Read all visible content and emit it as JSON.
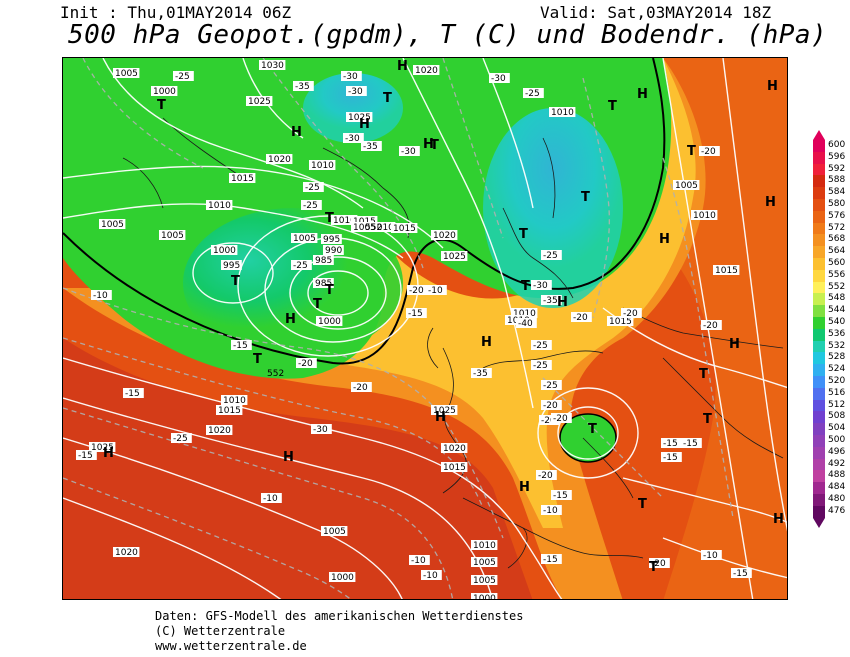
{
  "header": {
    "init": "Init : Thu,01MAY2014 06Z",
    "valid": "Valid: Sat,03MAY2014 18Z",
    "title": "500 hPa Geopot.(gpdm), T (C) und Bodendr. (hPa)"
  },
  "legend": {
    "values": [
      "600",
      "596",
      "592",
      "588",
      "584",
      "580",
      "576",
      "572",
      "568",
      "564",
      "560",
      "556",
      "552",
      "548",
      "544",
      "540",
      "536",
      "532",
      "528",
      "524",
      "520",
      "516",
      "512",
      "508",
      "504",
      "500",
      "496",
      "492",
      "488",
      "484",
      "480",
      "476"
    ],
    "colors": [
      "#e0005a",
      "#e8104a",
      "#f0203a",
      "#d42a10",
      "#dc3c10",
      "#e45012",
      "#ea6414",
      "#f07a18",
      "#f49020",
      "#f8a628",
      "#fcc030",
      "#ffd840",
      "#fff05a",
      "#c8f050",
      "#80e040",
      "#30d030",
      "#10c870",
      "#20d0b0",
      "#20c8e0",
      "#30b0f0",
      "#4090f8",
      "#5070f0",
      "#6050e0",
      "#7040d0",
      "#8040c0",
      "#9040b8",
      "#a040b0",
      "#b040a8",
      "#c040a0",
      "#a02890",
      "#801878",
      "#600860"
    ]
  },
  "map": {
    "pressure_labels": [
      "1005",
      "1030",
      "1020",
      "1000",
      "1025",
      "1020",
      "1025",
      "1010",
      "1015",
      "1010",
      "1005",
      "1005",
      "1000",
      "995",
      "995",
      "990",
      "985",
      "985",
      "1000",
      "1010",
      "1005",
      "1015",
      "1010",
      "1005",
      "1015",
      "1020",
      "1025",
      "1010",
      "1010",
      "1015",
      "1025",
      "1020",
      "1015",
      "1010",
      "1005",
      "1005",
      "1000",
      "1025",
      "1020",
      "1015",
      "1010",
      "1010",
      "1015",
      "1005",
      "1000",
      "1005",
      "1020",
      "1010"
    ],
    "temp_labels": [
      "-25",
      "-30",
      "-30",
      "-35",
      "-30",
      "-35",
      "-30",
      "-25",
      "-30",
      "-25",
      "-20",
      "-25",
      "-25",
      "-20",
      "-15",
      "-10",
      "-10",
      "-15",
      "-20",
      "-15",
      "-20",
      "-25",
      "-30",
      "-35",
      "-40",
      "-35",
      "-30",
      "-25",
      "-20",
      "-20",
      "-25",
      "-20",
      "-15",
      "-15",
      "-20",
      "-15",
      "-10",
      "-15",
      "-10",
      "-10",
      "-10",
      "-10",
      "-15",
      "-20",
      "-25",
      "-20",
      "-15",
      "-10",
      "-15",
      "-20",
      "-20",
      "-25"
    ],
    "h_label": "H",
    "t_label": "T",
    "contour_value_552": "552"
  },
  "footer": {
    "line1": "Daten: GFS-Modell des amerikanischen Wetterdienstes",
    "line2": "(C) Wetterzentrale",
    "line3": "www.wetterzentrale.de"
  }
}
